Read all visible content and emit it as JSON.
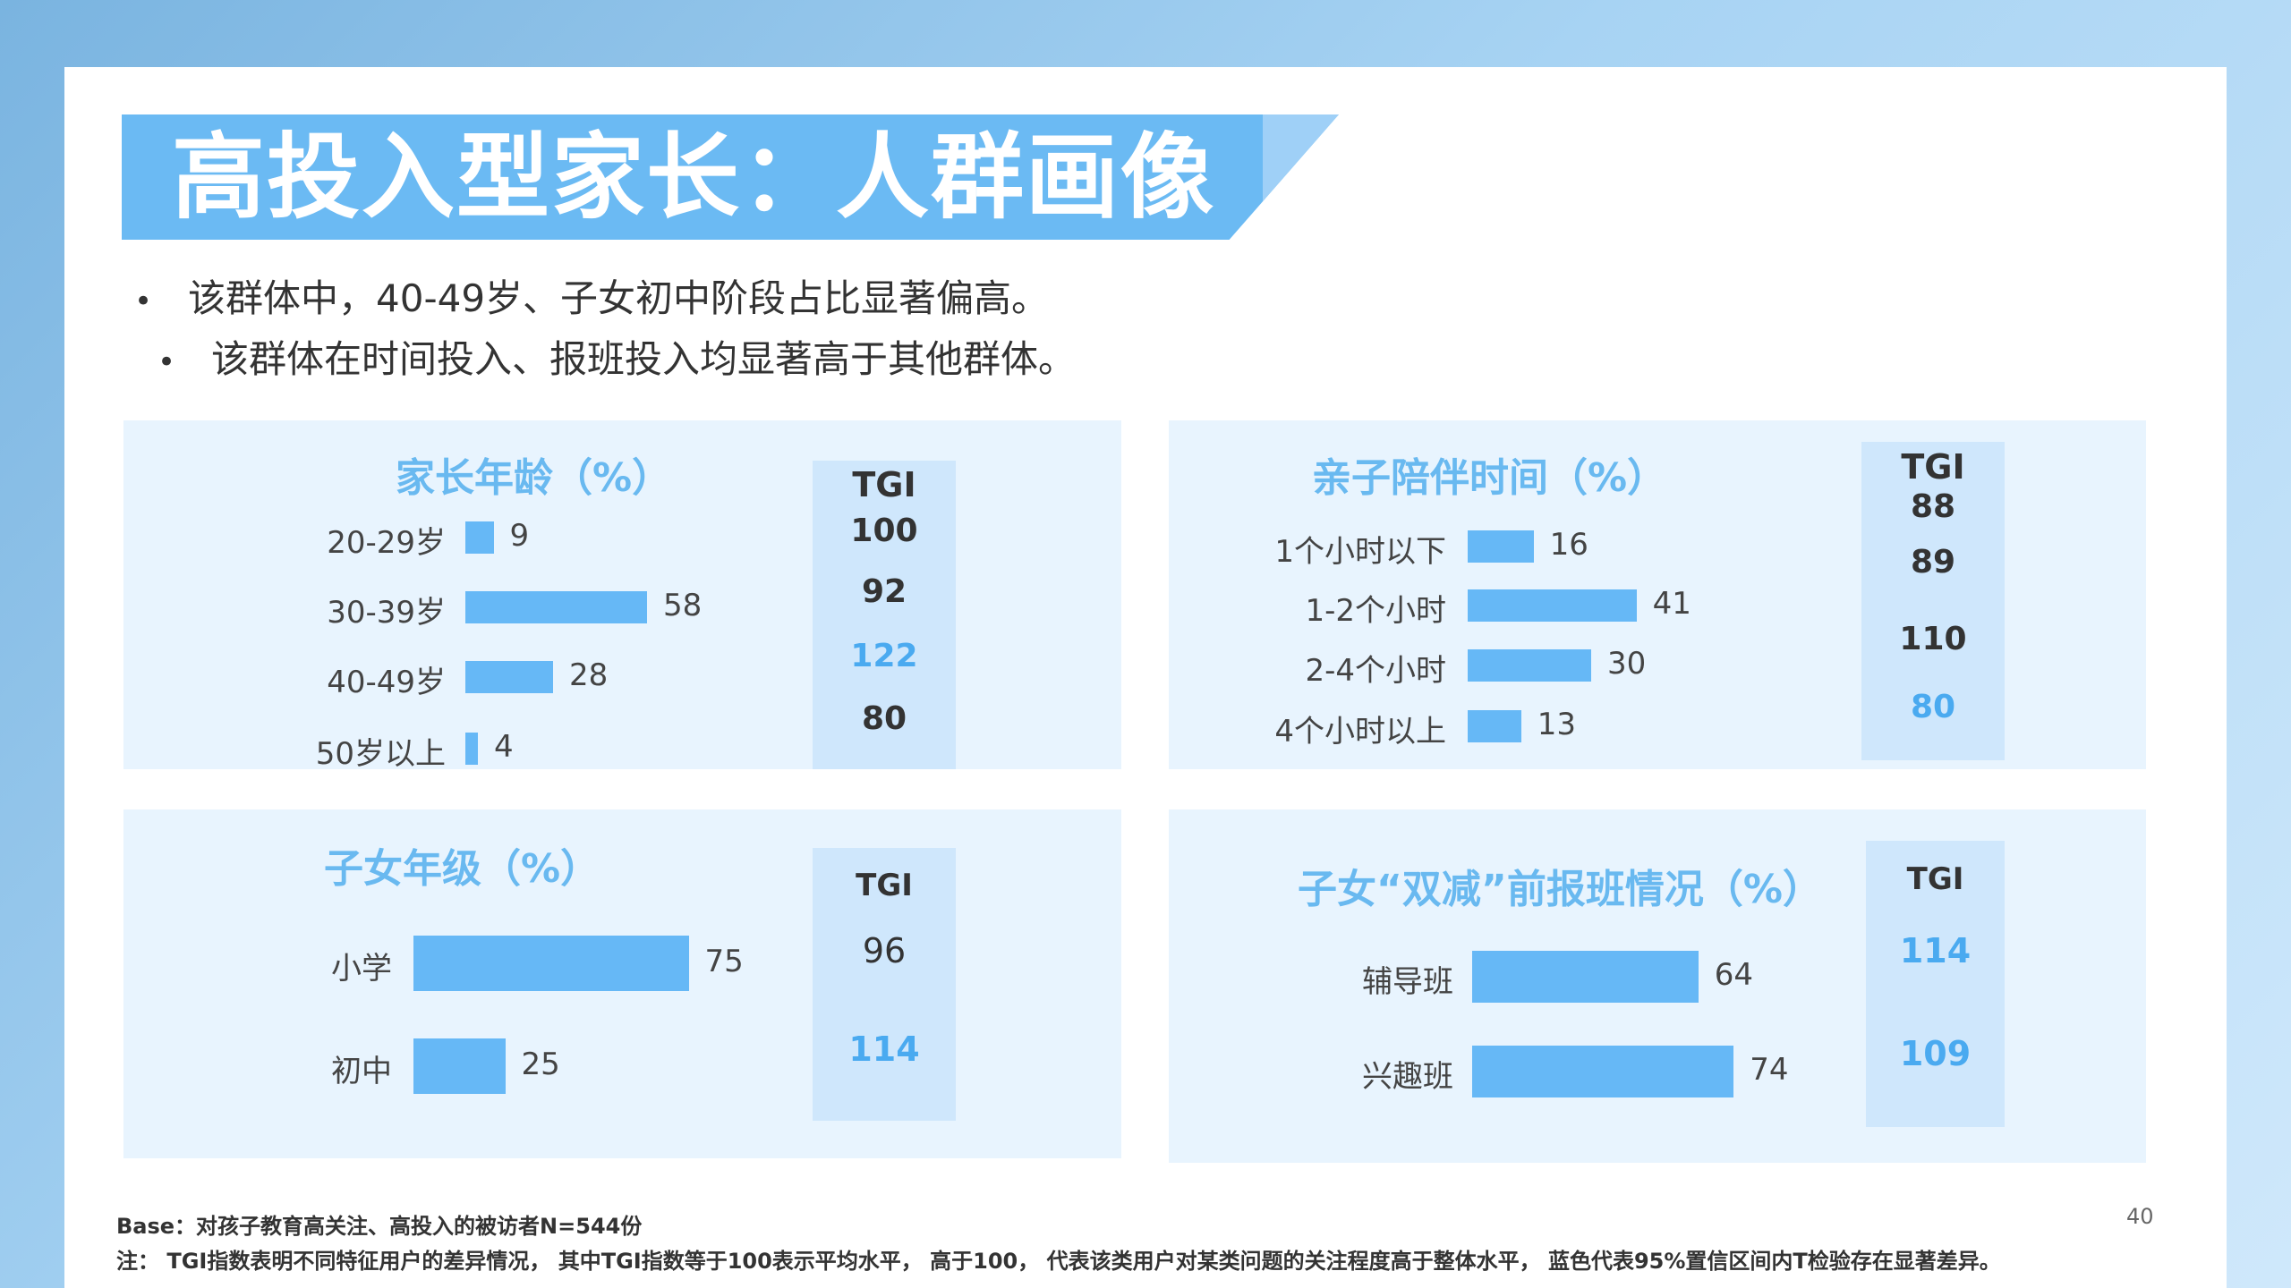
{
  "slide": {
    "title": "高投入型家长：人群画像",
    "bullets": [
      "该群体中，40-49岁、子女初中阶段占比显著偏高。",
      "该群体在时间投入、报班投入均显著高于其他群体。"
    ],
    "footer_base": "Base：对孩子教育高关注、高投入的被访者N=544份",
    "footer_note": "注： TGI指数表明不同特征用户的差异情况， 其中TGI指数等于100表示平均水平， 高于100， 代表该类用户对某类问题的关注程度高于整体水平， 蓝色代表95%置信区间内T检验存在显著差异。",
    "page_number": "40",
    "bullet_marker": "•"
  },
  "colors": {
    "bar": "#66b8f6",
    "panel_bg": "#e8f4fe",
    "tgi_bg": "#cfe7fc",
    "panel_title": "#69b9f0",
    "significant": "#4aaaf0",
    "title_banner": "#6bbaf3"
  },
  "chart_data": [
    {
      "type": "bar",
      "orientation": "horizontal",
      "title": "家长年龄（%）",
      "categories": [
        "20-29岁",
        "30-39岁",
        "40-49岁",
        "50岁以上"
      ],
      "values": [
        9,
        58,
        28,
        4
      ],
      "tgi_header": "TGI",
      "tgi": [
        "100",
        "92",
        "122",
        "80"
      ],
      "tgi_significant": [
        false,
        false,
        true,
        false
      ]
    },
    {
      "type": "bar",
      "orientation": "horizontal",
      "title": "亲子陪伴时间（%）",
      "categories": [
        "1个小时以下",
        "1-2个小时",
        "2-4个小时",
        "4个小时以上"
      ],
      "values": [
        16,
        41,
        30,
        13
      ],
      "tgi_header": "TGI",
      "tgi": [
        "88",
        "89",
        "110",
        "80"
      ],
      "tgi_significant": [
        false,
        false,
        false,
        true
      ]
    },
    {
      "type": "bar",
      "orientation": "horizontal",
      "title": "子女年级（%）",
      "categories": [
        "小学",
        "初中"
      ],
      "values": [
        75,
        25
      ],
      "tgi_header": "TGI",
      "tgi": [
        "96",
        "114"
      ],
      "tgi_significant": [
        false,
        true
      ]
    },
    {
      "type": "bar",
      "orientation": "horizontal",
      "title": "子女“双减”前报班情况（%）",
      "categories": [
        "辅导班",
        "兴趣班"
      ],
      "values": [
        64,
        74
      ],
      "tgi_header": "TGI",
      "tgi": [
        "114",
        "109"
      ],
      "tgi_significant": [
        true,
        true
      ]
    }
  ]
}
